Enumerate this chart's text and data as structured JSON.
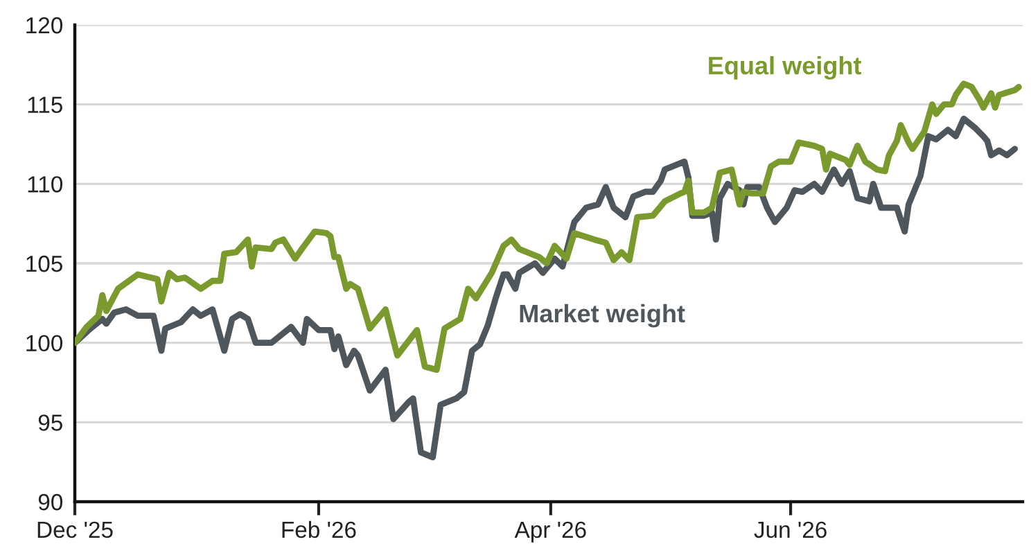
{
  "chart_data": {
    "type": "line",
    "xlim": [
      "2025-12-01",
      "2026-07-30"
    ],
    "ylim": [
      90,
      120
    ],
    "yticks": [
      90,
      95,
      100,
      105,
      110,
      115,
      120
    ],
    "xticks": [
      {
        "value": "2025-12-01",
        "label": "Dec '25"
      },
      {
        "value": "2026-02-01",
        "label": "Feb '26"
      },
      {
        "value": "2026-04-01",
        "label": "Apr '26"
      },
      {
        "value": "2026-06-01",
        "label": "Jun '26"
      }
    ],
    "grid": "y",
    "legend": false,
    "marker": "none",
    "line_style": "solid",
    "series": [
      {
        "name": "Equal weight",
        "color": "#7a9a2e",
        "x": [
          "2025-12-01",
          "2025-12-04",
          "2025-12-07",
          "2025-12-08",
          "2025-12-09",
          "2025-12-12",
          "2025-12-17",
          "2025-12-22",
          "2025-12-23",
          "2025-12-25",
          "2025-12-27",
          "2025-12-29",
          "2026-01-02",
          "2026-01-05",
          "2026-01-07",
          "2026-01-08",
          "2026-01-11",
          "2026-01-14",
          "2026-01-15",
          "2026-01-16",
          "2026-01-20",
          "2026-01-21",
          "2026-01-23",
          "2026-01-26",
          "2026-01-28",
          "2026-01-31",
          "2026-02-03",
          "2026-02-04",
          "2026-02-05",
          "2026-02-06",
          "2026-02-08",
          "2026-02-09",
          "2026-02-11",
          "2026-02-14",
          "2026-02-18",
          "2026-02-21",
          "2026-02-26",
          "2026-02-28",
          "2026-03-03",
          "2026-03-05",
          "2026-03-09",
          "2026-03-11",
          "2026-03-13",
          "2026-03-17",
          "2026-03-20",
          "2026-03-22",
          "2026-03-24",
          "2026-03-29",
          "2026-03-31",
          "2026-04-02",
          "2026-04-05",
          "2026-04-07",
          "2026-04-12",
          "2026-04-15",
          "2026-04-17",
          "2026-04-19",
          "2026-04-21",
          "2026-04-23",
          "2026-04-27",
          "2026-04-30",
          "2026-05-04",
          "2026-05-05",
          "2026-05-06",
          "2026-05-07",
          "2026-05-10",
          "2026-05-12",
          "2026-05-13",
          "2026-05-14",
          "2026-05-17",
          "2026-05-19",
          "2026-05-20",
          "2026-05-22",
          "2026-05-25",
          "2026-05-27",
          "2026-05-29",
          "2026-06-01",
          "2026-06-03",
          "2026-06-07",
          "2026-06-09",
          "2026-06-10",
          "2026-06-11",
          "2026-06-15",
          "2026-06-16",
          "2026-06-18",
          "2026-06-20",
          "2026-06-23",
          "2026-06-25",
          "2026-06-26",
          "2026-06-28",
          "2026-06-29",
          "2026-07-01",
          "2026-07-02",
          "2026-07-05",
          "2026-07-07",
          "2026-07-08",
          "2026-07-10",
          "2026-07-12",
          "2026-07-13",
          "2026-07-15",
          "2026-07-17",
          "2026-07-19",
          "2026-07-20",
          "2026-07-22",
          "2026-07-23",
          "2026-07-24",
          "2026-07-28",
          "2026-07-29"
        ],
        "values": [
          100,
          101,
          101.7,
          103,
          102,
          103.4,
          104.3,
          104,
          102.6,
          104.4,
          104,
          104.1,
          103.4,
          103.9,
          103.9,
          105.6,
          105.7,
          106.5,
          104.8,
          106,
          105.9,
          106.3,
          106.5,
          105.3,
          106,
          107,
          106.9,
          106.7,
          105.4,
          105.4,
          103.4,
          103.7,
          103.4,
          100.9,
          102.1,
          99.2,
          100.8,
          98.5,
          98.3,
          100.9,
          101.5,
          103.4,
          102.8,
          104.4,
          106.1,
          106.5,
          105.9,
          105.4,
          105,
          106.1,
          105.3,
          106.9,
          106.5,
          106.3,
          105.2,
          105.7,
          105.2,
          107.9,
          108,
          108.9,
          109.4,
          109.5,
          110.2,
          108.2,
          108.2,
          108.5,
          109.6,
          110.7,
          110.9,
          108.7,
          109.5,
          109.4,
          109.4,
          111.1,
          111.4,
          111.4,
          112.6,
          112.4,
          112.2,
          110.9,
          111.9,
          111.5,
          111.2,
          112.4,
          111.4,
          110.9,
          110.8,
          111.8,
          112.7,
          113.7,
          112.6,
          112.2,
          113.3,
          115,
          114.4,
          115,
          115,
          115.6,
          116.3,
          116.1,
          115.3,
          114.8,
          115.7,
          114.8,
          115.6,
          115.9,
          116.1
        ]
      },
      {
        "name": "Market weight",
        "color": "#50575c",
        "x": [
          "2025-12-01",
          "2025-12-05",
          "2025-12-08",
          "2025-12-09",
          "2025-12-11",
          "2025-12-14",
          "2025-12-17",
          "2025-12-21",
          "2025-12-23",
          "2025-12-24",
          "2025-12-28",
          "2025-12-31",
          "2026-01-02",
          "2026-01-05",
          "2026-01-08",
          "2026-01-10",
          "2026-01-12",
          "2026-01-14",
          "2026-01-16",
          "2026-01-20",
          "2026-01-25",
          "2026-01-28",
          "2026-01-29",
          "2026-02-01",
          "2026-02-04",
          "2026-02-05",
          "2026-02-06",
          "2026-02-08",
          "2026-02-10",
          "2026-02-11",
          "2026-02-14",
          "2026-02-18",
          "2026-02-20",
          "2026-02-24",
          "2026-02-25",
          "2026-02-27",
          "2026-03-02",
          "2026-03-04",
          "2026-03-08",
          "2026-03-10",
          "2026-03-12",
          "2026-03-14",
          "2026-03-16",
          "2026-03-18",
          "2026-03-20",
          "2026-03-21",
          "2026-03-23",
          "2026-03-24",
          "2026-03-26",
          "2026-03-28",
          "2026-03-30",
          "2026-04-02",
          "2026-04-04",
          "2026-04-07",
          "2026-04-10",
          "2026-04-13",
          "2026-04-15",
          "2026-04-17",
          "2026-04-20",
          "2026-04-22",
          "2026-04-25",
          "2026-04-27",
          "2026-04-29",
          "2026-04-30",
          "2026-05-05",
          "2026-05-06",
          "2026-05-07",
          "2026-05-10",
          "2026-05-12",
          "2026-05-13",
          "2026-05-14",
          "2026-05-16",
          "2026-05-19",
          "2026-05-20",
          "2026-05-21",
          "2026-05-24",
          "2026-05-26",
          "2026-05-28",
          "2026-05-31",
          "2026-06-02",
          "2026-06-04",
          "2026-06-07",
          "2026-06-09",
          "2026-06-12",
          "2026-06-14",
          "2026-06-16",
          "2026-06-18",
          "2026-06-21",
          "2026-06-22",
          "2026-06-24",
          "2026-06-28",
          "2026-06-30",
          "2026-07-01",
          "2026-07-04",
          "2026-07-06",
          "2026-07-08",
          "2026-07-11",
          "2026-07-13",
          "2026-07-15",
          "2026-07-18",
          "2026-07-20",
          "2026-07-21",
          "2026-07-22",
          "2026-07-24",
          "2026-07-26",
          "2026-07-28"
        ],
        "values": [
          100,
          100.9,
          101.5,
          101.2,
          101.9,
          102.1,
          101.7,
          101.7,
          99.5,
          100.9,
          101.3,
          102.1,
          101.7,
          102.1,
          99.5,
          101.5,
          101.8,
          101.5,
          100,
          100,
          101,
          100,
          101.5,
          100.8,
          100.8,
          99.6,
          100.4,
          98.6,
          99.5,
          99.2,
          97,
          98.3,
          95.2,
          96.3,
          96.5,
          93.1,
          92.8,
          96.1,
          96.5,
          96.9,
          99.5,
          99.9,
          101.1,
          102.8,
          104.3,
          104.3,
          103.4,
          104.4,
          104.7,
          105,
          104.4,
          105.3,
          104.8,
          107.6,
          108.5,
          108.7,
          109.8,
          108.5,
          107.9,
          109.2,
          109.5,
          109.5,
          110.2,
          110.9,
          111.4,
          110.4,
          108,
          108,
          108.2,
          106.5,
          109.1,
          110,
          109.6,
          108.7,
          109.8,
          109.8,
          108.5,
          107.6,
          108.5,
          109.6,
          109.5,
          110,
          109.5,
          110.9,
          110,
          110.8,
          109.1,
          108.9,
          110,
          108.5,
          108.5,
          107,
          108.7,
          110.5,
          113,
          112.8,
          113.4,
          113,
          114.1,
          113.5,
          113,
          112.7,
          111.8,
          112.1,
          111.8,
          112.2
        ]
      }
    ]
  }
}
